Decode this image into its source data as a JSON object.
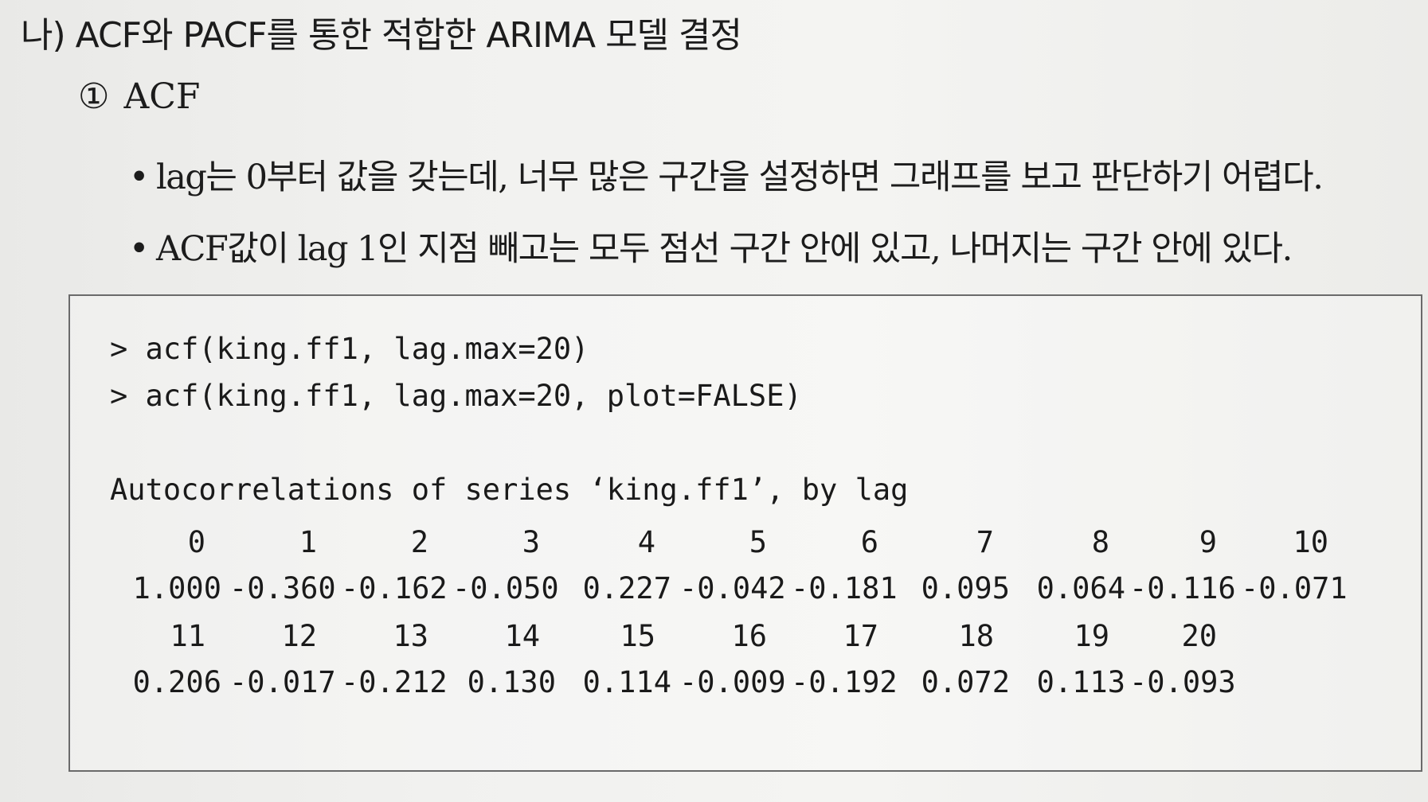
{
  "heading": "나) ACF와 PACF를 통한 적합한 ARIMA 모델 결정",
  "subheading": {
    "number": "①",
    "title": "ACF"
  },
  "bullets": [
    "lag는 0부터 값을 갖는데, 너무 많은 구간을 설정하면 그래프를 보고 판단하기 어렵다.",
    "ACF값이 lag 1인 지점 빼고는 모두 점선 구간 안에 있고, 나머지는 구간 안에 있다."
  ],
  "code": {
    "commands": [
      "> acf(king.ff1, lag.max=20)",
      "> acf(king.ff1, lag.max=20, plot=FALSE)"
    ],
    "output_header": "Autocorrelations of series ‘king.ff1’, by lag",
    "rows": [
      {
        "lags": [
          "0",
          "1",
          "2",
          "3",
          "4",
          "5",
          "6",
          "7",
          "8",
          "9",
          "10"
        ],
        "values": [
          "1.000",
          "-0.360",
          "-0.162",
          "-0.050",
          "0.227",
          "-0.042",
          "-0.181",
          "0.095",
          "0.064",
          "-0.116",
          "-0.071"
        ]
      },
      {
        "lags": [
          "11",
          "12",
          "13",
          "14",
          "15",
          "16",
          "17",
          "18",
          "19",
          "20"
        ],
        "values": [
          "0.206",
          "-0.017",
          "-0.212",
          "0.130",
          "0.114",
          "-0.009",
          "-0.192",
          "0.072",
          "0.113",
          "-0.093"
        ]
      }
    ]
  }
}
